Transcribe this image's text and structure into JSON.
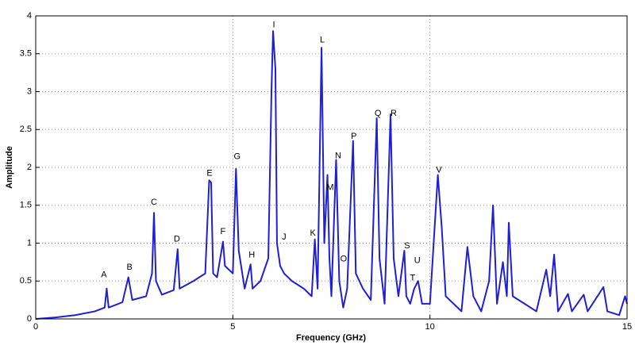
{
  "chart_data": {
    "type": "line",
    "x_label": "Frequency (GHz)",
    "y_label": "Amplitude",
    "xlim": [
      0,
      15
    ],
    "ylim": [
      0,
      4
    ],
    "xticks": [
      0,
      5,
      10,
      15
    ],
    "yticks": [
      0,
      0.5,
      1,
      1.5,
      2,
      2.5,
      3,
      3.5,
      4
    ],
    "grid": true,
    "series": [
      {
        "color": "#1f1fd6",
        "x": [
          0,
          0.5,
          1,
          1.5,
          1.75,
          1.8,
          1.85,
          2.2,
          2.35,
          2.45,
          2.8,
          2.95,
          3.0,
          3.05,
          3.2,
          3.5,
          3.6,
          3.65,
          4.0,
          4.3,
          4.4,
          4.45,
          4.5,
          4.6,
          4.75,
          4.8,
          5.0,
          5.08,
          5.15,
          5.3,
          5.45,
          5.5,
          5.7,
          5.9,
          5.98,
          6.02,
          6.08,
          6.12,
          6.2,
          6.3,
          6.5,
          6.8,
          7.0,
          7.08,
          7.15,
          7.25,
          7.32,
          7.4,
          7.45,
          7.5,
          7.62,
          7.7,
          7.8,
          7.9,
          8.05,
          8.12,
          8.3,
          8.5,
          8.65,
          8.72,
          8.85,
          9.0,
          9.08,
          9.2,
          9.35,
          9.4,
          9.5,
          9.6,
          9.7,
          9.8,
          10.0,
          10.2,
          10.3,
          10.4,
          10.6,
          10.8,
          10.95,
          11.1,
          11.3,
          11.5,
          11.6,
          11.7,
          11.85,
          11.95,
          12.0,
          12.1,
          12.4,
          12.7,
          12.95,
          13.05,
          13.15,
          13.25,
          13.5,
          13.6,
          13.9,
          14.0,
          14.4,
          14.5,
          14.8,
          14.95,
          15
        ],
        "values": [
          0,
          0.02,
          0.05,
          0.1,
          0.15,
          0.4,
          0.15,
          0.22,
          0.55,
          0.25,
          0.3,
          0.6,
          1.4,
          0.5,
          0.32,
          0.38,
          0.92,
          0.4,
          0.5,
          0.6,
          1.83,
          1.8,
          0.6,
          0.55,
          1.02,
          0.7,
          0.6,
          1.98,
          0.9,
          0.4,
          0.72,
          0.4,
          0.5,
          0.8,
          3.0,
          3.8,
          3.3,
          1.0,
          0.7,
          0.6,
          0.5,
          0.4,
          0.3,
          1.05,
          0.4,
          3.58,
          1.0,
          1.9,
          0.8,
          0.3,
          2.1,
          0.5,
          0.15,
          0.4,
          2.35,
          0.6,
          0.4,
          0.25,
          2.65,
          0.8,
          0.2,
          2.7,
          0.8,
          0.3,
          0.9,
          0.3,
          0.2,
          0.4,
          0.5,
          0.2,
          0.2,
          1.9,
          1.2,
          0.3,
          0.2,
          0.1,
          0.95,
          0.3,
          0.1,
          0.5,
          1.5,
          0.2,
          0.75,
          0.3,
          1.27,
          0.3,
          0.2,
          0.1,
          0.65,
          0.3,
          0.85,
          0.1,
          0.33,
          0.1,
          0.32,
          0.1,
          0.42,
          0.1,
          0.05,
          0.3,
          0.2
        ]
      }
    ],
    "annotations": [
      {
        "text": "A",
        "x": 1.73,
        "y": 0.58
      },
      {
        "text": "B",
        "x": 2.38,
        "y": 0.68
      },
      {
        "text": "C",
        "x": 3.0,
        "y": 1.54
      },
      {
        "text": "D",
        "x": 3.58,
        "y": 1.05
      },
      {
        "text": "E",
        "x": 4.41,
        "y": 1.92
      },
      {
        "text": "F",
        "x": 4.75,
        "y": 1.15
      },
      {
        "text": "G",
        "x": 5.11,
        "y": 2.14
      },
      {
        "text": "H",
        "x": 5.48,
        "y": 0.84
      },
      {
        "text": "I",
        "x": 6.04,
        "y": 3.88
      },
      {
        "text": "J",
        "x": 6.3,
        "y": 1.08
      },
      {
        "text": "K",
        "x": 7.03,
        "y": 1.13
      },
      {
        "text": "L",
        "x": 7.27,
        "y": 3.68
      },
      {
        "text": "M",
        "x": 7.47,
        "y": 1.73
      },
      {
        "text": "N",
        "x": 7.67,
        "y": 2.15
      },
      {
        "text": "O",
        "x": 7.81,
        "y": 0.79
      },
      {
        "text": "P",
        "x": 8.07,
        "y": 2.41
      },
      {
        "text": "Q",
        "x": 8.68,
        "y": 2.71
      },
      {
        "text": "R",
        "x": 9.08,
        "y": 2.71
      },
      {
        "text": "S",
        "x": 9.42,
        "y": 0.96
      },
      {
        "text": "T",
        "x": 9.56,
        "y": 0.54
      },
      {
        "text": "U",
        "x": 9.68,
        "y": 0.77
      },
      {
        "text": "V",
        "x": 10.23,
        "y": 1.96
      }
    ]
  }
}
